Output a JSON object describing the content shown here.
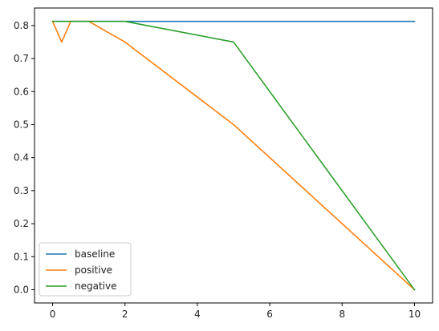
{
  "chart_data": {
    "type": "line",
    "title": "",
    "xlabel": "",
    "ylabel": "",
    "xlim": [
      -0.5,
      10.5
    ],
    "ylim": [
      -0.04,
      0.853
    ],
    "x_ticks": [
      0,
      2,
      4,
      6,
      8,
      10
    ],
    "y_ticks": [
      0.0,
      0.1,
      0.2,
      0.3,
      0.4,
      0.5,
      0.6,
      0.7,
      0.8
    ],
    "grid": false,
    "legend_position": "lower-left",
    "series": [
      {
        "name": "baseline",
        "color": "#1f77b4",
        "x": [
          0,
          0.25,
          0.5,
          1,
          2,
          5,
          10
        ],
        "y": [
          0.8125,
          0.8125,
          0.8125,
          0.8125,
          0.8125,
          0.8125,
          0.8125
        ]
      },
      {
        "name": "positive",
        "color": "#ff7f0e",
        "x": [
          0,
          0.25,
          0.5,
          1,
          2,
          5,
          10
        ],
        "y": [
          0.8125,
          0.75,
          0.8125,
          0.8125,
          0.75,
          0.5,
          0.0
        ]
      },
      {
        "name": "negative",
        "color": "#2ca02c",
        "x": [
          0,
          0.25,
          0.5,
          1,
          2,
          5,
          10
        ],
        "y": [
          0.8125,
          0.8125,
          0.8125,
          0.8125,
          0.8125,
          0.75,
          0.0
        ]
      }
    ]
  }
}
